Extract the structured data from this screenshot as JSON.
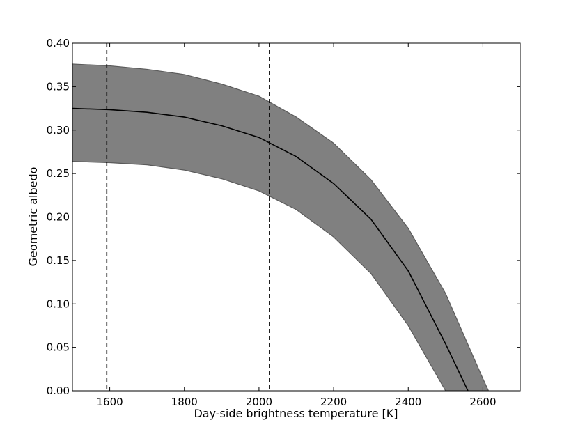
{
  "chart_data": {
    "type": "area",
    "xlabel": "Day-side brightness temperature [K]",
    "ylabel": "Geometric albedo",
    "xlim": [
      1500,
      2700
    ],
    "ylim": [
      0.0,
      0.4
    ],
    "xticks": [
      1600,
      1800,
      2000,
      2200,
      2400,
      2600
    ],
    "yticks": [
      0.0,
      0.05,
      0.1,
      0.15,
      0.2,
      0.25,
      0.3,
      0.35,
      0.4
    ],
    "ytick_labels": [
      "0.00",
      "0.05",
      "0.10",
      "0.15",
      "0.20",
      "0.25",
      "0.30",
      "0.35",
      "0.40"
    ],
    "grid": false,
    "legend": "none",
    "series": [
      {
        "role": "central",
        "style": "solid",
        "color": "#000000",
        "x": [
          1500,
          1600,
          1700,
          1800,
          1900,
          2000,
          2100,
          2200,
          2300,
          2400,
          2500,
          2560
        ],
        "y": [
          0.325,
          0.3235,
          0.3205,
          0.315,
          0.305,
          0.2915,
          0.2695,
          0.2385,
          0.1975,
          0.138,
          0.054,
          0.0
        ]
      },
      {
        "role": "upper-bound",
        "style": "fill-edge",
        "color": "#808080",
        "x": [
          1500,
          1600,
          1700,
          1800,
          1900,
          2000,
          2100,
          2200,
          2300,
          2400,
          2500,
          2600,
          2615
        ],
        "y": [
          0.376,
          0.374,
          0.37,
          0.364,
          0.353,
          0.339,
          0.315,
          0.285,
          0.243,
          0.187,
          0.112,
          0.014,
          0.0
        ]
      },
      {
        "role": "lower-bound",
        "style": "fill-edge",
        "color": "#808080",
        "x": [
          1500,
          1600,
          1700,
          1800,
          1900,
          2000,
          2100,
          2200,
          2300,
          2400,
          2500
        ],
        "y": [
          0.264,
          0.2625,
          0.26,
          0.254,
          0.244,
          0.23,
          0.2085,
          0.177,
          0.135,
          0.075,
          0.0
        ]
      }
    ],
    "vertical_lines": [
      {
        "x": 1592,
        "style": "dashed",
        "color": "#000000"
      },
      {
        "x": 2028,
        "style": "dashed",
        "color": "#000000"
      }
    ],
    "band_color": "#808080"
  }
}
